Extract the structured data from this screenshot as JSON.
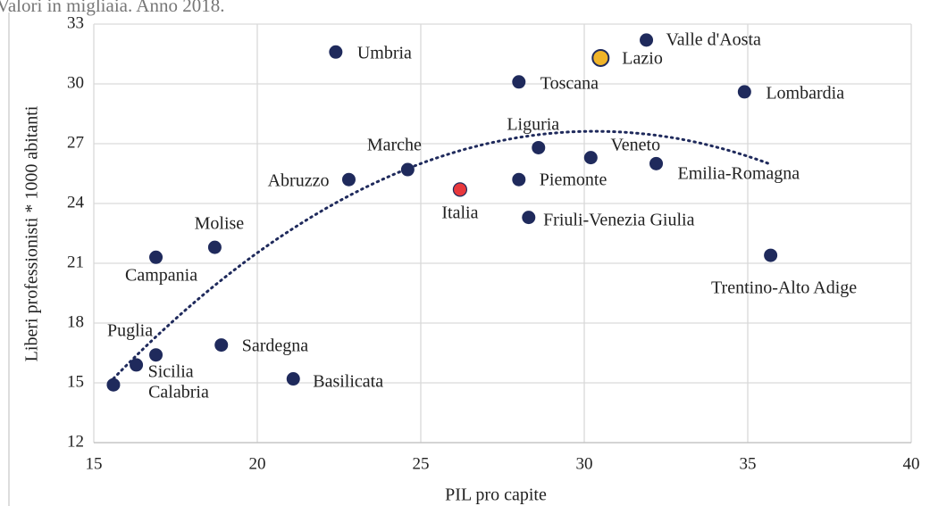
{
  "chart_data": {
    "type": "scatter",
    "subtitle": "Valori in migliaia. Anno 2018.",
    "x_label": "PIL pro capite",
    "y_label": "Liberi professionisti * 1000 abitanti",
    "categories": [
      "Umbria",
      "Valle d'Aosta",
      "Lazio",
      "Toscana",
      "Lombardia",
      "Liguria",
      "Veneto",
      "Emilia-Romagna",
      "Marche",
      "Abruzzo",
      "Piemonte",
      "Italia",
      "Friuli-Venezia Giulia",
      "Molise",
      "Campania",
      "Trentino-Alto Adige",
      "Sardegna",
      "Puglia",
      "Sicilia",
      "Calabria",
      "Basilicata"
    ],
    "x": [
      22.4,
      31.9,
      30.5,
      28.0,
      34.9,
      28.6,
      30.2,
      32.2,
      24.6,
      22.8,
      28.0,
      26.2,
      28.3,
      18.7,
      16.9,
      35.7,
      18.9,
      16.9,
      16.3,
      15.6,
      21.1
    ],
    "values": [
      31.6,
      32.2,
      31.3,
      30.1,
      29.6,
      26.8,
      26.3,
      26.0,
      25.7,
      25.2,
      25.2,
      24.7,
      23.3,
      21.8,
      21.3,
      21.4,
      16.9,
      16.4,
      15.9,
      14.9,
      15.2
    ],
    "colors": [
      "#1f2a5c",
      "#1f2a5c",
      "#f0b429",
      "#1f2a5c",
      "#1f2a5c",
      "#1f2a5c",
      "#1f2a5c",
      "#1f2a5c",
      "#1f2a5c",
      "#1f2a5c",
      "#1f2a5c",
      "#e8383d",
      "#1f2a5c",
      "#1f2a5c",
      "#1f2a5c",
      "#1f2a5c",
      "#1f2a5c",
      "#1f2a5c",
      "#1f2a5c",
      "#1f2a5c",
      "#1f2a5c"
    ],
    "xlim": [
      15,
      40
    ],
    "ylim": [
      12,
      33
    ],
    "xticks": [
      15,
      20,
      25,
      30,
      35,
      40
    ],
    "yticks": [
      12,
      15,
      18,
      21,
      24,
      27,
      30,
      33
    ],
    "grid": true,
    "trendline": "polynomial",
    "trendline_color": "#1f2a5c"
  }
}
